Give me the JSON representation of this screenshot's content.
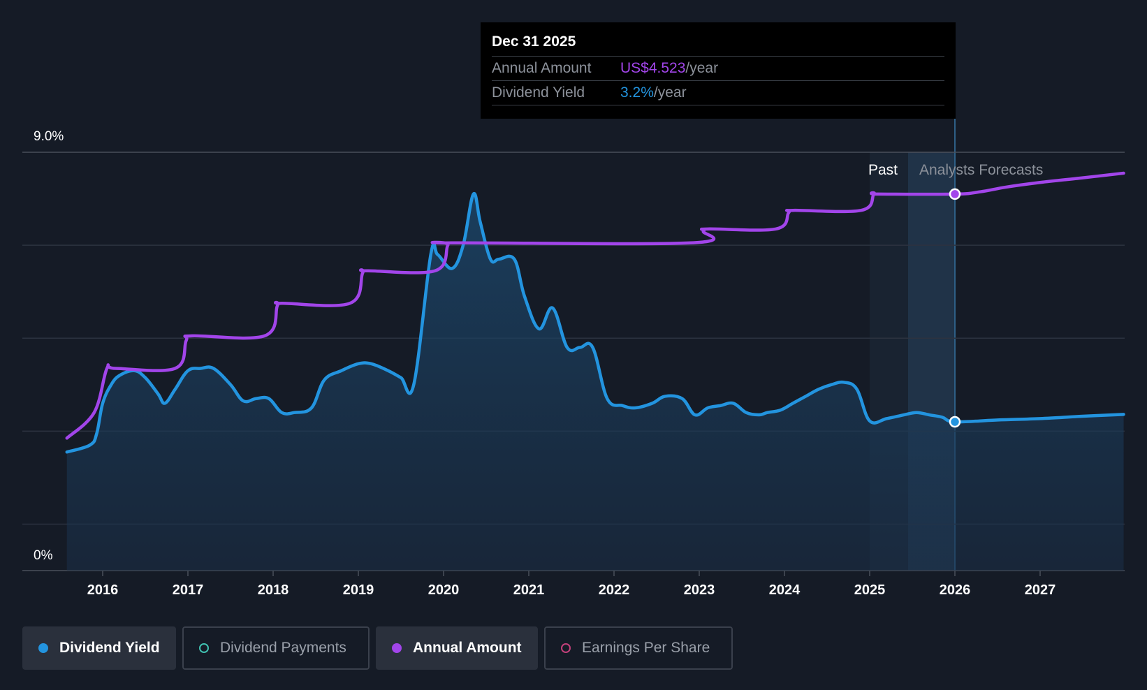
{
  "chart_data": {
    "type": "line",
    "y_axis": {
      "top_label": "9.0%",
      "bottom_label": "0%",
      "ylim": [
        0,
        9.0
      ],
      "unit": "%"
    },
    "x_axis": {
      "tick_labels": [
        "2016",
        "2017",
        "2018",
        "2019",
        "2020",
        "2021",
        "2022",
        "2023",
        "2024",
        "2025",
        "2026",
        "2027"
      ],
      "xlim": [
        2015.58,
        2027.98
      ]
    },
    "grid": true,
    "regions": {
      "past_label": "Past",
      "forecast_label": "Analysts Forecasts",
      "past_band_start": 2025.0,
      "divider": 2026.0
    },
    "series": [
      {
        "name": "Dividend Yield",
        "color": "#2394df",
        "area": true,
        "points": [
          [
            2015.58,
            2.55
          ],
          [
            2015.85,
            2.7
          ],
          [
            2015.93,
            2.95
          ],
          [
            2016.0,
            3.6
          ],
          [
            2016.1,
            4.0
          ],
          [
            2016.2,
            4.2
          ],
          [
            2016.37,
            4.3
          ],
          [
            2016.5,
            4.15
          ],
          [
            2016.65,
            3.8
          ],
          [
            2016.73,
            3.6
          ],
          [
            2016.85,
            3.9
          ],
          [
            2017.0,
            4.3
          ],
          [
            2017.15,
            4.35
          ],
          [
            2017.3,
            4.35
          ],
          [
            2017.5,
            4.0
          ],
          [
            2017.65,
            3.65
          ],
          [
            2017.8,
            3.7
          ],
          [
            2017.95,
            3.7
          ],
          [
            2018.1,
            3.4
          ],
          [
            2018.25,
            3.4
          ],
          [
            2018.45,
            3.5
          ],
          [
            2018.6,
            4.1
          ],
          [
            2018.8,
            4.3
          ],
          [
            2019.0,
            4.45
          ],
          [
            2019.15,
            4.45
          ],
          [
            2019.35,
            4.3
          ],
          [
            2019.5,
            4.15
          ],
          [
            2019.65,
            4.0
          ],
          [
            2019.85,
            6.8
          ],
          [
            2019.93,
            6.8
          ],
          [
            2020.1,
            6.5
          ],
          [
            2020.23,
            7.0
          ],
          [
            2020.35,
            8.1
          ],
          [
            2020.43,
            7.5
          ],
          [
            2020.55,
            6.7
          ],
          [
            2020.65,
            6.7
          ],
          [
            2020.83,
            6.7
          ],
          [
            2020.95,
            5.9
          ],
          [
            2021.12,
            5.2
          ],
          [
            2021.28,
            5.65
          ],
          [
            2021.45,
            4.8
          ],
          [
            2021.6,
            4.8
          ],
          [
            2021.75,
            4.8
          ],
          [
            2021.92,
            3.7
          ],
          [
            2022.1,
            3.55
          ],
          [
            2022.25,
            3.5
          ],
          [
            2022.45,
            3.6
          ],
          [
            2022.6,
            3.75
          ],
          [
            2022.8,
            3.7
          ],
          [
            2022.95,
            3.35
          ],
          [
            2023.1,
            3.5
          ],
          [
            2023.25,
            3.55
          ],
          [
            2023.4,
            3.6
          ],
          [
            2023.55,
            3.4
          ],
          [
            2023.7,
            3.35
          ],
          [
            2023.8,
            3.4
          ],
          [
            2023.95,
            3.45
          ],
          [
            2024.1,
            3.6
          ],
          [
            2024.25,
            3.75
          ],
          [
            2024.4,
            3.9
          ],
          [
            2024.55,
            4.0
          ],
          [
            2024.7,
            4.05
          ],
          [
            2024.85,
            3.9
          ],
          [
            2025.0,
            3.22
          ],
          [
            2025.2,
            3.27
          ],
          [
            2025.4,
            3.35
          ],
          [
            2025.55,
            3.4
          ],
          [
            2025.7,
            3.35
          ],
          [
            2025.85,
            3.3
          ],
          [
            2026.0,
            3.2
          ],
          [
            2026.5,
            3.24
          ],
          [
            2027.0,
            3.27
          ],
          [
            2027.5,
            3.32
          ],
          [
            2027.98,
            3.36
          ]
        ]
      },
      {
        "name": "Annual Amount",
        "color": "#a245ea",
        "area": false,
        "points": [
          [
            2015.58,
            2.85
          ],
          [
            2015.9,
            3.4
          ],
          [
            2016.05,
            4.35
          ],
          [
            2016.15,
            4.35
          ],
          [
            2016.85,
            4.35
          ],
          [
            2016.98,
            4.95
          ],
          [
            2017.05,
            5.05
          ],
          [
            2017.9,
            5.05
          ],
          [
            2018.05,
            5.7
          ],
          [
            2018.1,
            5.75
          ],
          [
            2018.9,
            5.75
          ],
          [
            2019.05,
            6.4
          ],
          [
            2019.1,
            6.45
          ],
          [
            2019.9,
            6.45
          ],
          [
            2020.05,
            7.0
          ],
          [
            2020.1,
            7.05
          ],
          [
            2022.9,
            7.05
          ],
          [
            2023.05,
            7.3
          ],
          [
            2023.1,
            7.35
          ],
          [
            2023.9,
            7.35
          ],
          [
            2024.05,
            7.7
          ],
          [
            2024.1,
            7.75
          ],
          [
            2024.9,
            7.75
          ],
          [
            2025.05,
            8.1
          ],
          [
            2025.1,
            8.1
          ],
          [
            2026.0,
            8.1
          ],
          [
            2026.3,
            8.15
          ],
          [
            2026.6,
            8.25
          ],
          [
            2027.0,
            8.35
          ],
          [
            2027.5,
            8.45
          ],
          [
            2027.98,
            8.55
          ]
        ]
      }
    ],
    "highlight": {
      "x": 2026.0,
      "yield": 3.2,
      "annual_amount": 8.1
    }
  },
  "tooltip": {
    "date": "Dec 31 2025",
    "rows": [
      {
        "label": "Annual Amount",
        "value": "US$4.523",
        "unit": "/year",
        "color": "#a245ea"
      },
      {
        "label": "Dividend Yield",
        "value": "3.2%",
        "unit": "/year",
        "color": "#2394df"
      }
    ]
  },
  "legend": [
    {
      "label": "Dividend Yield",
      "color": "#2394df",
      "active": true,
      "filled": true
    },
    {
      "label": "Dividend Payments",
      "color": "#40c0b0",
      "active": false,
      "filled": false
    },
    {
      "label": "Annual Amount",
      "color": "#a245ea",
      "active": true,
      "filled": true
    },
    {
      "label": "Earnings Per Share",
      "color": "#c2407a",
      "active": false,
      "filled": false
    }
  ]
}
